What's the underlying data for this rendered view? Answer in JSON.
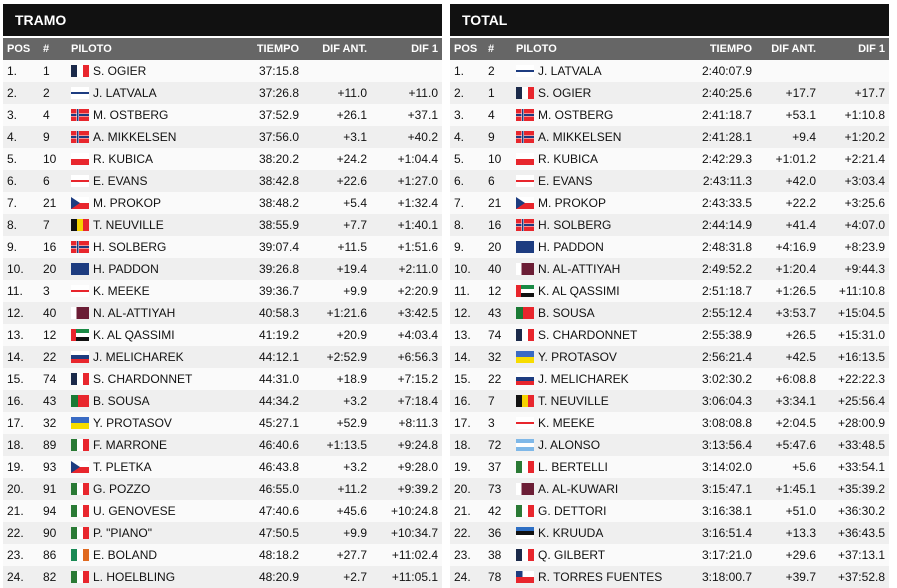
{
  "columns": {
    "pos": "POS",
    "num": "#",
    "pilot": "PILOTO",
    "time": "TIEMPO",
    "dif_prev": "DIF ANT.",
    "dif_first": "DIF 1"
  },
  "tramo": {
    "title": "TRAMO",
    "rows": [
      [
        "1.",
        "1",
        "fr",
        "S. OGIER",
        "37:15.8",
        "",
        ""
      ],
      [
        "2.",
        "2",
        "fi",
        "J. LATVALA",
        "37:26.8",
        "+11.0",
        "+11.0"
      ],
      [
        "3.",
        "4",
        "no",
        "M. OSTBERG",
        "37:52.9",
        "+26.1",
        "+37.1"
      ],
      [
        "4.",
        "9",
        "no",
        "A. MIKKELSEN",
        "37:56.0",
        "+3.1",
        "+40.2"
      ],
      [
        "5.",
        "10",
        "pl",
        "R. KUBICA",
        "38:20.2",
        "+24.2",
        "+1:04.4"
      ],
      [
        "6.",
        "6",
        "gb",
        "E. EVANS",
        "38:42.8",
        "+22.6",
        "+1:27.0"
      ],
      [
        "7.",
        "21",
        "cz",
        "M. PROKOP",
        "38:48.2",
        "+5.4",
        "+1:32.4"
      ],
      [
        "8.",
        "7",
        "be",
        "T. NEUVILLE",
        "38:55.9",
        "+7.7",
        "+1:40.1"
      ],
      [
        "9.",
        "16",
        "no",
        "H. SOLBERG",
        "39:07.4",
        "+11.5",
        "+1:51.6"
      ],
      [
        "10.",
        "20",
        "nz",
        "H. PADDON",
        "39:26.8",
        "+19.4",
        "+2:11.0"
      ],
      [
        "11.",
        "3",
        "gb",
        "K. MEEKE",
        "39:36.7",
        "+9.9",
        "+2:20.9"
      ],
      [
        "12.",
        "40",
        "qa",
        "N. AL-ATTIYAH",
        "40:58.3",
        "+1:21.6",
        "+3:42.5"
      ],
      [
        "13.",
        "12",
        "ae",
        "K. AL QASSIMI",
        "41:19.2",
        "+20.9",
        "+4:03.4"
      ],
      [
        "14.",
        "22",
        "sk",
        "J. MELICHAREK",
        "44:12.1",
        "+2:52.9",
        "+6:56.3"
      ],
      [
        "15.",
        "74",
        "fr",
        "S. CHARDONNET",
        "44:31.0",
        "+18.9",
        "+7:15.2"
      ],
      [
        "16.",
        "43",
        "pt",
        "B. SOUSA",
        "44:34.2",
        "+3.2",
        "+7:18.4"
      ],
      [
        "17.",
        "32",
        "ua",
        "Y. PROTASOV",
        "45:27.1",
        "+52.9",
        "+8:11.3"
      ],
      [
        "18.",
        "89",
        "it",
        "F. MARRONE",
        "46:40.6",
        "+1:13.5",
        "+9:24.8"
      ],
      [
        "19.",
        "93",
        "cz",
        "T. PLETKA",
        "46:43.8",
        "+3.2",
        "+9:28.0"
      ],
      [
        "20.",
        "91",
        "it",
        "G. POZZO",
        "46:55.0",
        "+11.2",
        "+9:39.2"
      ],
      [
        "21.",
        "94",
        "it",
        "U. GENOVESE",
        "47:40.6",
        "+45.6",
        "+10:24.8"
      ],
      [
        "22.",
        "90",
        "it",
        "P. \"PIANO\"",
        "47:50.5",
        "+9.9",
        "+10:34.7"
      ],
      [
        "23.",
        "86",
        "ie",
        "E. BOLAND",
        "48:18.2",
        "+27.7",
        "+11:02.4"
      ],
      [
        "24.",
        "82",
        "it",
        "L. HOELBLING",
        "48:20.9",
        "+2.7",
        "+11:05.1"
      ]
    ]
  },
  "total": {
    "title": "TOTAL",
    "rows": [
      [
        "1.",
        "2",
        "fi",
        "J. LATVALA",
        "2:40:07.9",
        "",
        ""
      ],
      [
        "2.",
        "1",
        "fr",
        "S. OGIER",
        "2:40:25.6",
        "+17.7",
        "+17.7"
      ],
      [
        "3.",
        "4",
        "no",
        "M. OSTBERG",
        "2:41:18.7",
        "+53.1",
        "+1:10.8"
      ],
      [
        "4.",
        "9",
        "no",
        "A. MIKKELSEN",
        "2:41:28.1",
        "+9.4",
        "+1:20.2"
      ],
      [
        "5.",
        "10",
        "pl",
        "R. KUBICA",
        "2:42:29.3",
        "+1:01.2",
        "+2:21.4"
      ],
      [
        "6.",
        "6",
        "gb",
        "E. EVANS",
        "2:43:11.3",
        "+42.0",
        "+3:03.4"
      ],
      [
        "7.",
        "21",
        "cz",
        "M. PROKOP",
        "2:43:33.5",
        "+22.2",
        "+3:25.6"
      ],
      [
        "8.",
        "16",
        "no",
        "H. SOLBERG",
        "2:44:14.9",
        "+41.4",
        "+4:07.0"
      ],
      [
        "9.",
        "20",
        "nz",
        "H. PADDON",
        "2:48:31.8",
        "+4:16.9",
        "+8:23.9"
      ],
      [
        "10.",
        "40",
        "qa",
        "N. AL-ATTIYAH",
        "2:49:52.2",
        "+1:20.4",
        "+9:44.3"
      ],
      [
        "11.",
        "12",
        "ae",
        "K. AL QASSIMI",
        "2:51:18.7",
        "+1:26.5",
        "+11:10.8"
      ],
      [
        "12.",
        "43",
        "pt",
        "B. SOUSA",
        "2:55:12.4",
        "+3:53.7",
        "+15:04.5"
      ],
      [
        "13.",
        "74",
        "fr",
        "S. CHARDONNET",
        "2:55:38.9",
        "+26.5",
        "+15:31.0"
      ],
      [
        "14.",
        "32",
        "ua",
        "Y. PROTASOV",
        "2:56:21.4",
        "+42.5",
        "+16:13.5"
      ],
      [
        "15.",
        "22",
        "sk",
        "J. MELICHAREK",
        "3:02:30.2",
        "+6:08.8",
        "+22:22.3"
      ],
      [
        "16.",
        "7",
        "be",
        "T. NEUVILLE",
        "3:06:04.3",
        "+3:34.1",
        "+25:56.4"
      ],
      [
        "17.",
        "3",
        "gb",
        "K. MEEKE",
        "3:08:08.8",
        "+2:04.5",
        "+28:00.9"
      ],
      [
        "18.",
        "72",
        "ar",
        "J. ALONSO",
        "3:13:56.4",
        "+5:47.6",
        "+33:48.5"
      ],
      [
        "19.",
        "37",
        "it",
        "L. BERTELLI",
        "3:14:02.0",
        "+5.6",
        "+33:54.1"
      ],
      [
        "20.",
        "73",
        "qa",
        "A. AL-KUWARI",
        "3:15:47.1",
        "+1:45.1",
        "+35:39.2"
      ],
      [
        "21.",
        "42",
        "it",
        "G. DETTORI",
        "3:16:38.1",
        "+51.0",
        "+36:30.2"
      ],
      [
        "22.",
        "36",
        "ee",
        "K. KRUUDA",
        "3:16:51.4",
        "+13.3",
        "+36:43.5"
      ],
      [
        "23.",
        "38",
        "fr",
        "Q. GILBERT",
        "3:17:21.0",
        "+29.6",
        "+37:13.1"
      ],
      [
        "24.",
        "78",
        "cl",
        "R. TORRES FUENTES",
        "3:18:00.7",
        "+39.7",
        "+37:52.8"
      ]
    ]
  }
}
